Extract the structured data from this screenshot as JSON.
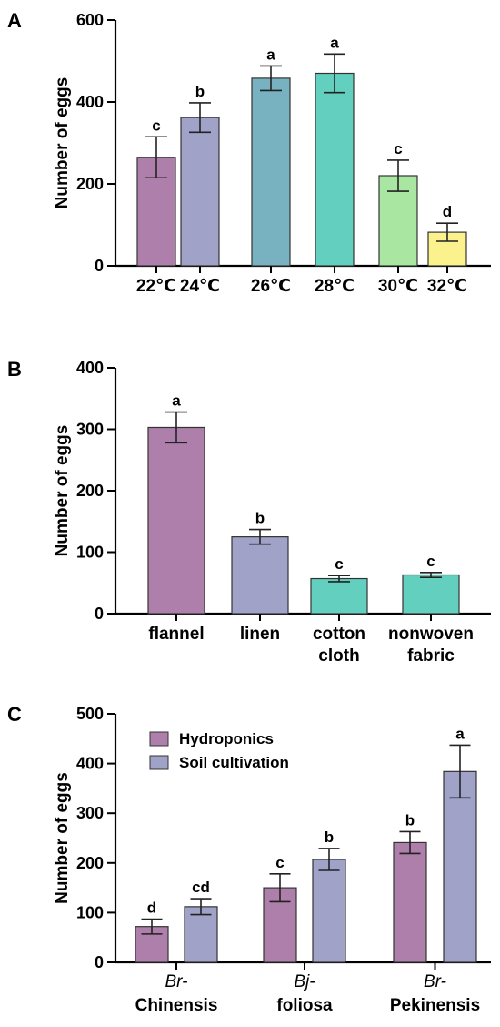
{
  "chart_data": [
    {
      "type": "bar",
      "panel": "A",
      "ylabel": "Number of eggs",
      "ylim": [
        0,
        600
      ],
      "yticks": [
        0,
        200,
        400,
        600
      ],
      "categories": [
        "22℃",
        "24℃",
        "26℃",
        "28℃",
        "30℃",
        "32℃"
      ],
      "values": [
        265,
        362,
        458,
        470,
        220,
        82
      ],
      "errors": [
        50,
        36,
        30,
        47,
        38,
        22
      ],
      "labels": [
        "c",
        "b",
        "a",
        "a",
        "c",
        "d"
      ],
      "colors": [
        "#ad7faa",
        "#a0a2c8",
        "#78b2c1",
        "#63d0bf",
        "#a9e6a2",
        "#fbf28e"
      ],
      "grid": false
    },
    {
      "type": "bar",
      "panel": "B",
      "ylabel": "Number of eggs",
      "ylim": [
        0,
        400
      ],
      "yticks": [
        0,
        100,
        200,
        300,
        400
      ],
      "categories": [
        "flannel",
        "linen",
        "cotton cloth",
        "nonwoven fabric"
      ],
      "values": [
        303,
        125,
        57,
        63
      ],
      "errors": [
        25,
        12,
        5,
        4
      ],
      "labels": [
        "a",
        "b",
        "c",
        "c"
      ],
      "colors": [
        "#ad7faa",
        "#a0a2c8",
        "#63d0bf",
        "#63d0bf"
      ],
      "grid": false
    },
    {
      "type": "bar",
      "panel": "C",
      "ylabel": "Number of eggs",
      "ylim": [
        0,
        500
      ],
      "yticks": [
        0,
        100,
        200,
        300,
        400,
        500
      ],
      "categories": [
        {
          "italic": "Br-",
          "bold": "Chinensis"
        },
        {
          "italic": "Bj-",
          "bold": "foliosa"
        },
        {
          "italic": "Br-",
          "bold": "Pekinensis"
        }
      ],
      "series": [
        {
          "name": "Hydroponics",
          "color": "#ad7faa",
          "values": [
            72,
            150,
            241
          ],
          "errors": [
            15,
            28,
            22
          ],
          "labels": [
            "d",
            "c",
            "b"
          ]
        },
        {
          "name": "Soil cultivation",
          "color": "#a0a2c8",
          "values": [
            112,
            207,
            384
          ],
          "errors": [
            16,
            22,
            53
          ],
          "labels": [
            "cd",
            "b",
            "a"
          ]
        }
      ],
      "legend": "top-left",
      "grid": false
    }
  ]
}
